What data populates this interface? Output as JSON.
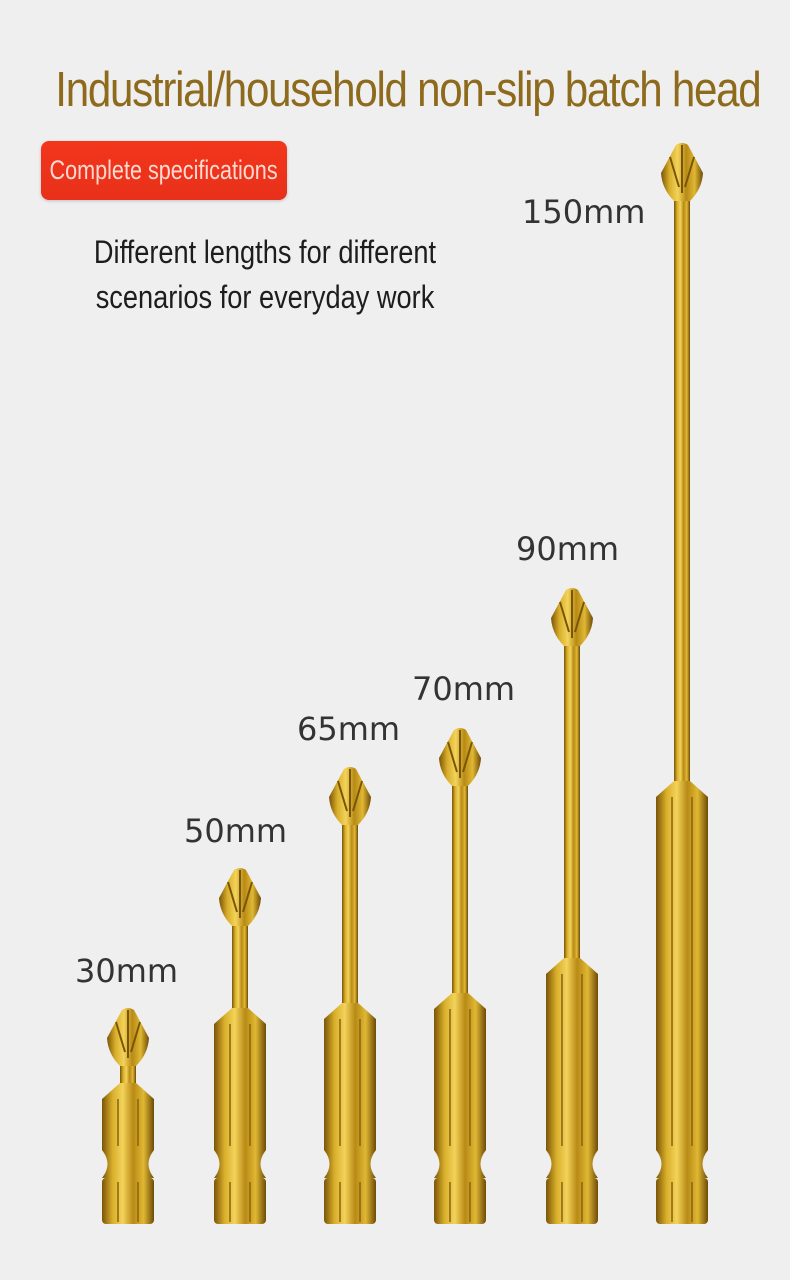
{
  "title": "Industrial/household non-slip batch head",
  "badge": "Complete specifications",
  "subtitle": [
    "Different lengths for different",
    "scenarios for everyday work"
  ],
  "bits": [
    {
      "length": "30mm"
    },
    {
      "length": "50mm"
    },
    {
      "length": "65mm"
    },
    {
      "length": "70mm"
    },
    {
      "length": "90mm"
    },
    {
      "length": "150mm"
    }
  ],
  "colors": {
    "title": "#8d6a1c",
    "badge": "#f2361c",
    "gold": "#c9a020"
  }
}
